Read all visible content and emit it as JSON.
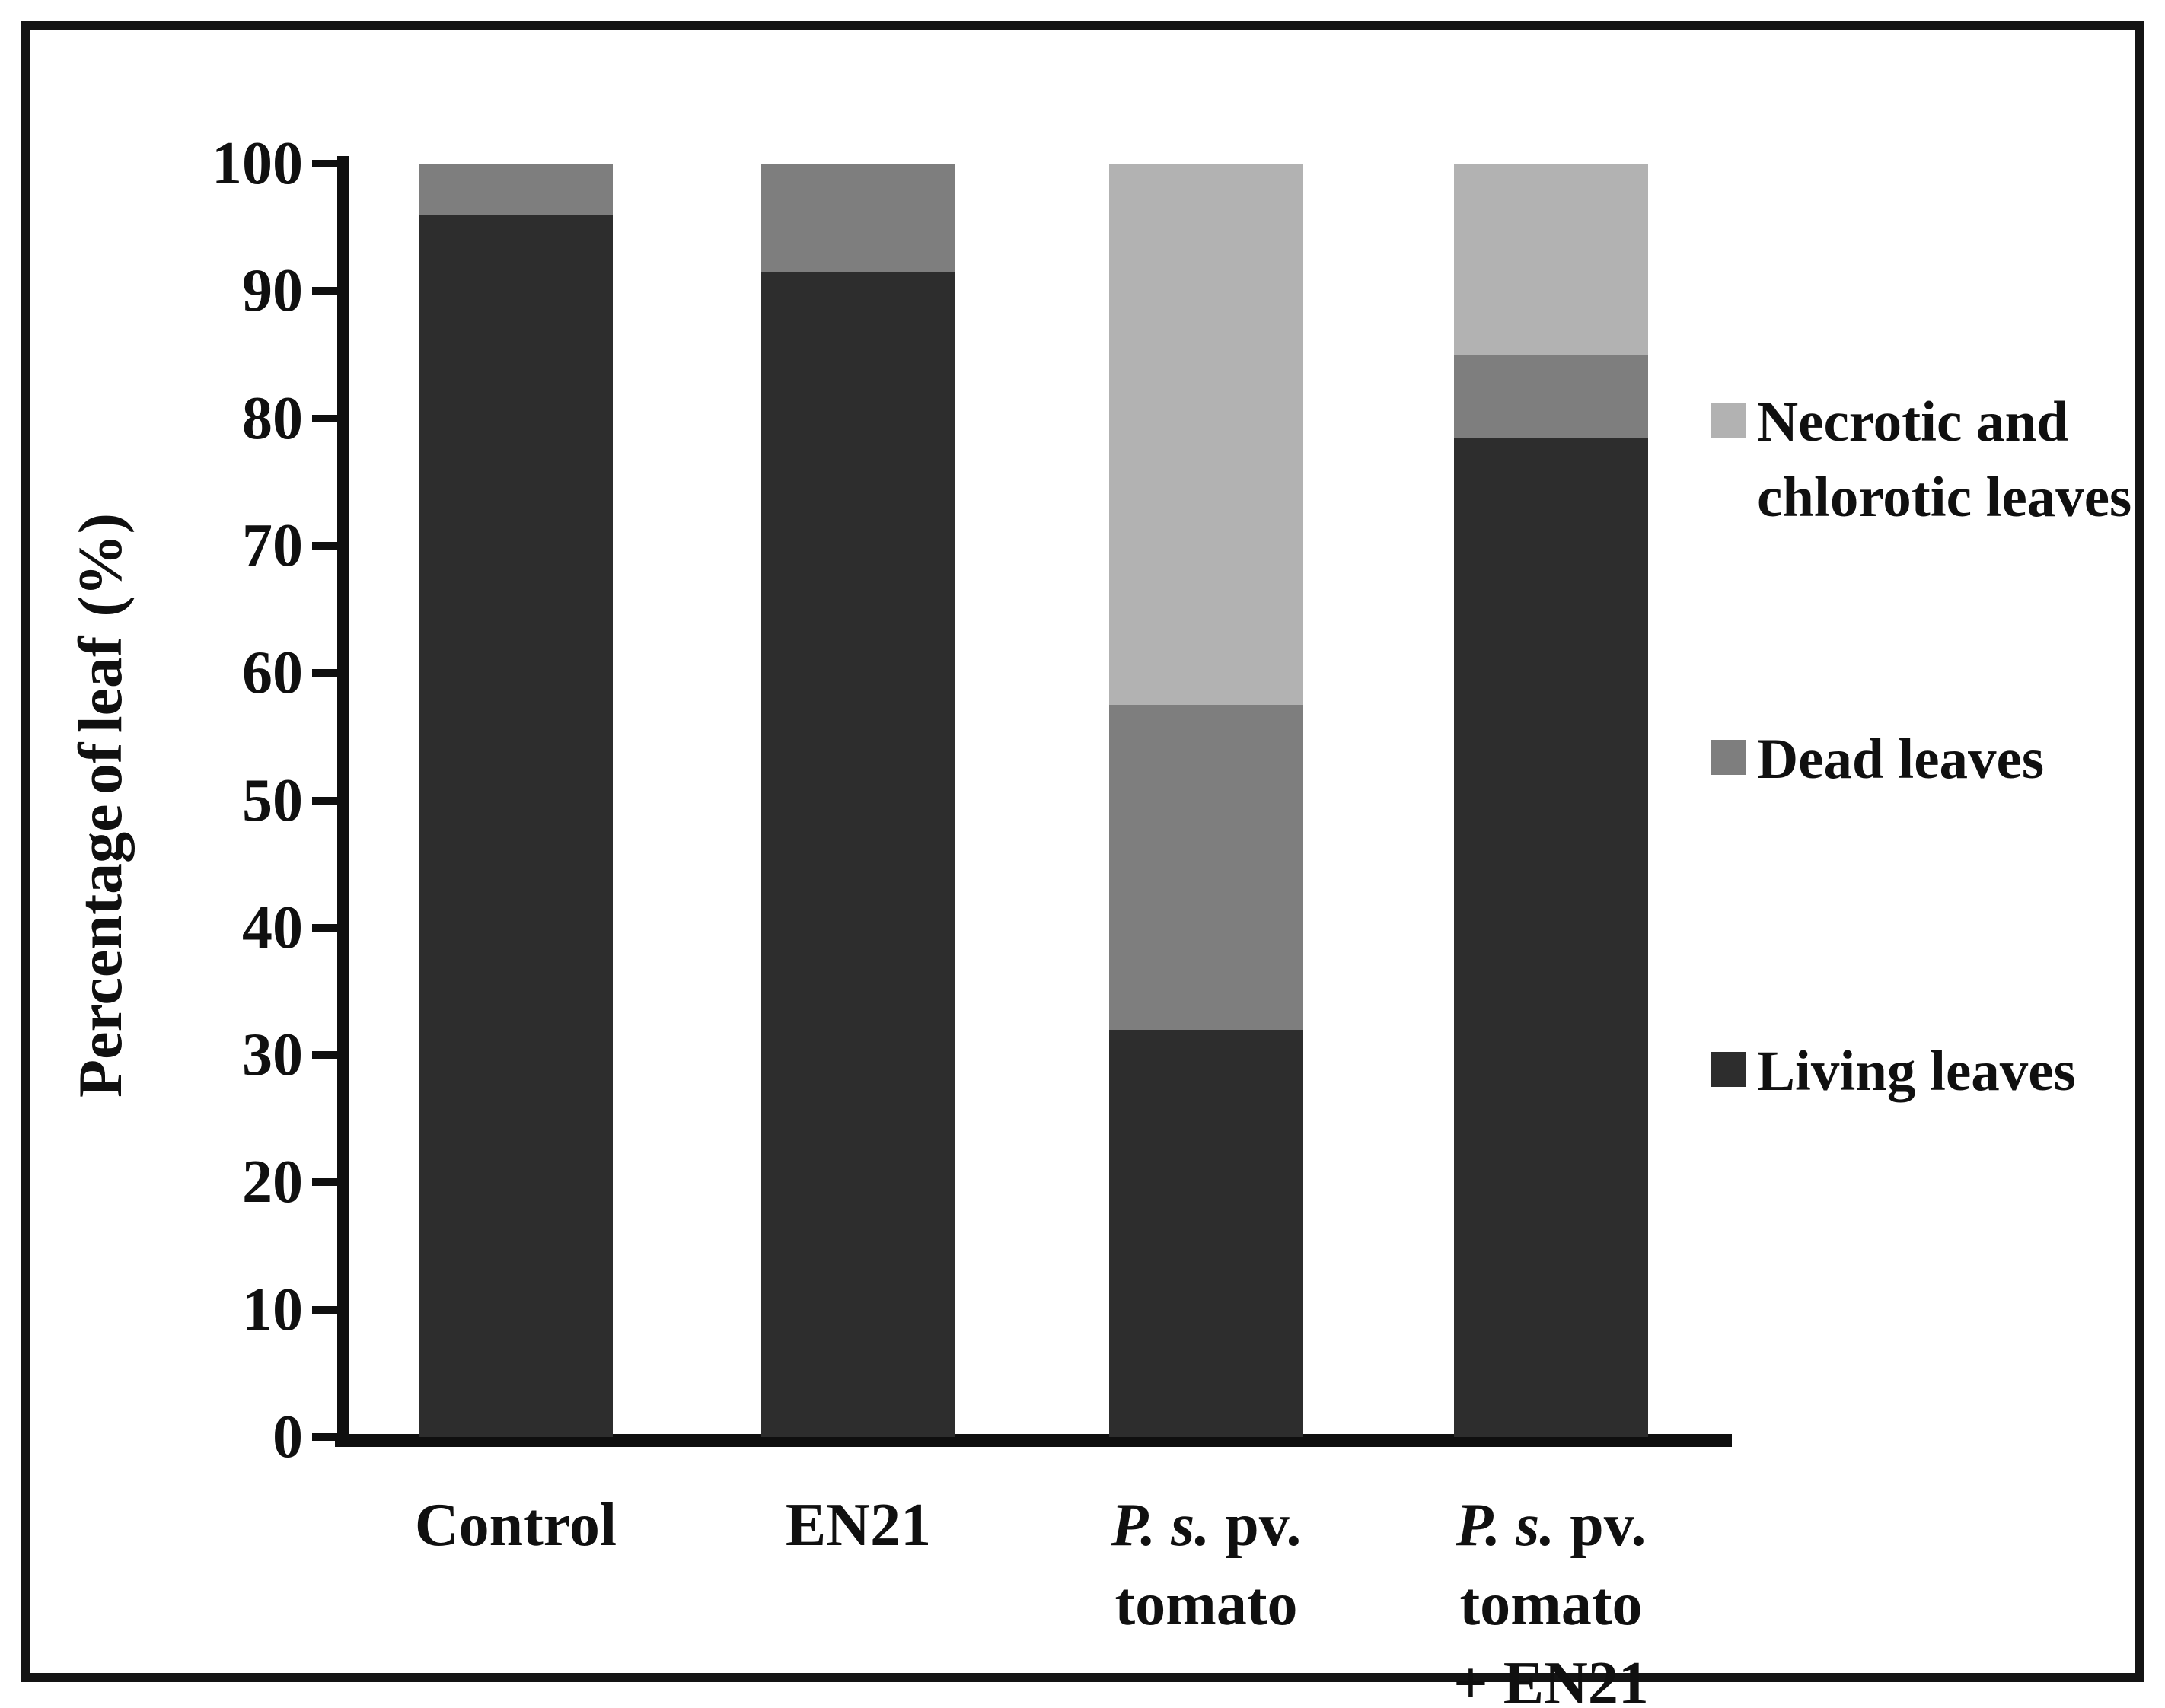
{
  "chart_data": {
    "type": "bar",
    "stacked": true,
    "title": "",
    "xlabel": "",
    "ylabel": "Percentage of leaf  (%)",
    "ylim": [
      0,
      100
    ],
    "grid": false,
    "y_ticks": [
      0,
      10,
      20,
      30,
      40,
      50,
      60,
      70,
      80,
      90,
      100
    ],
    "categories": [
      "Control",
      "EN21",
      "P. s. pv. tomato",
      "P. s. pv. tomato + EN21"
    ],
    "category_label_lines": [
      [
        [
          {
            "text": "Control",
            "italic": false
          }
        ]
      ],
      [
        [
          {
            "text": "EN21",
            "italic": false
          }
        ]
      ],
      [
        [
          {
            "text": "P. s.",
            "italic": true
          },
          {
            "text": " pv.",
            "italic": false
          }
        ],
        [
          {
            "text": "tomato",
            "italic": false
          }
        ]
      ],
      [
        [
          {
            "text": "P. s.",
            "italic": true
          },
          {
            "text": " pv.",
            "italic": false
          }
        ],
        [
          {
            "text": "tomato",
            "italic": false
          }
        ],
        [
          {
            "text": "+ EN21",
            "italic": false
          }
        ]
      ]
    ],
    "series": [
      {
        "name": "Living leaves",
        "color": "#2d2d2d",
        "values": [
          96,
          91.5,
          32,
          78.5
        ]
      },
      {
        "name": "Dead leaves",
        "color": "#7e7e7e",
        "values": [
          4,
          8.5,
          25.5,
          6.5
        ]
      },
      {
        "name": "Necrotic and chlorotic leaves",
        "color": "#b2b2b2",
        "values": [
          0,
          0,
          42.5,
          15
        ]
      }
    ],
    "legend": {
      "position": "right",
      "items": [
        {
          "series": "Necrotic and chlorotic leaves",
          "color": "#b2b2b2",
          "label_lines": [
            "Necrotic and",
            "chlorotic leaves"
          ]
        },
        {
          "series": "Dead leaves",
          "color": "#7e7e7e",
          "label_lines": [
            "Dead leaves"
          ]
        },
        {
          "series": "Living leaves",
          "color": "#2d2d2d",
          "label_lines": [
            "Living leaves"
          ]
        }
      ]
    }
  }
}
